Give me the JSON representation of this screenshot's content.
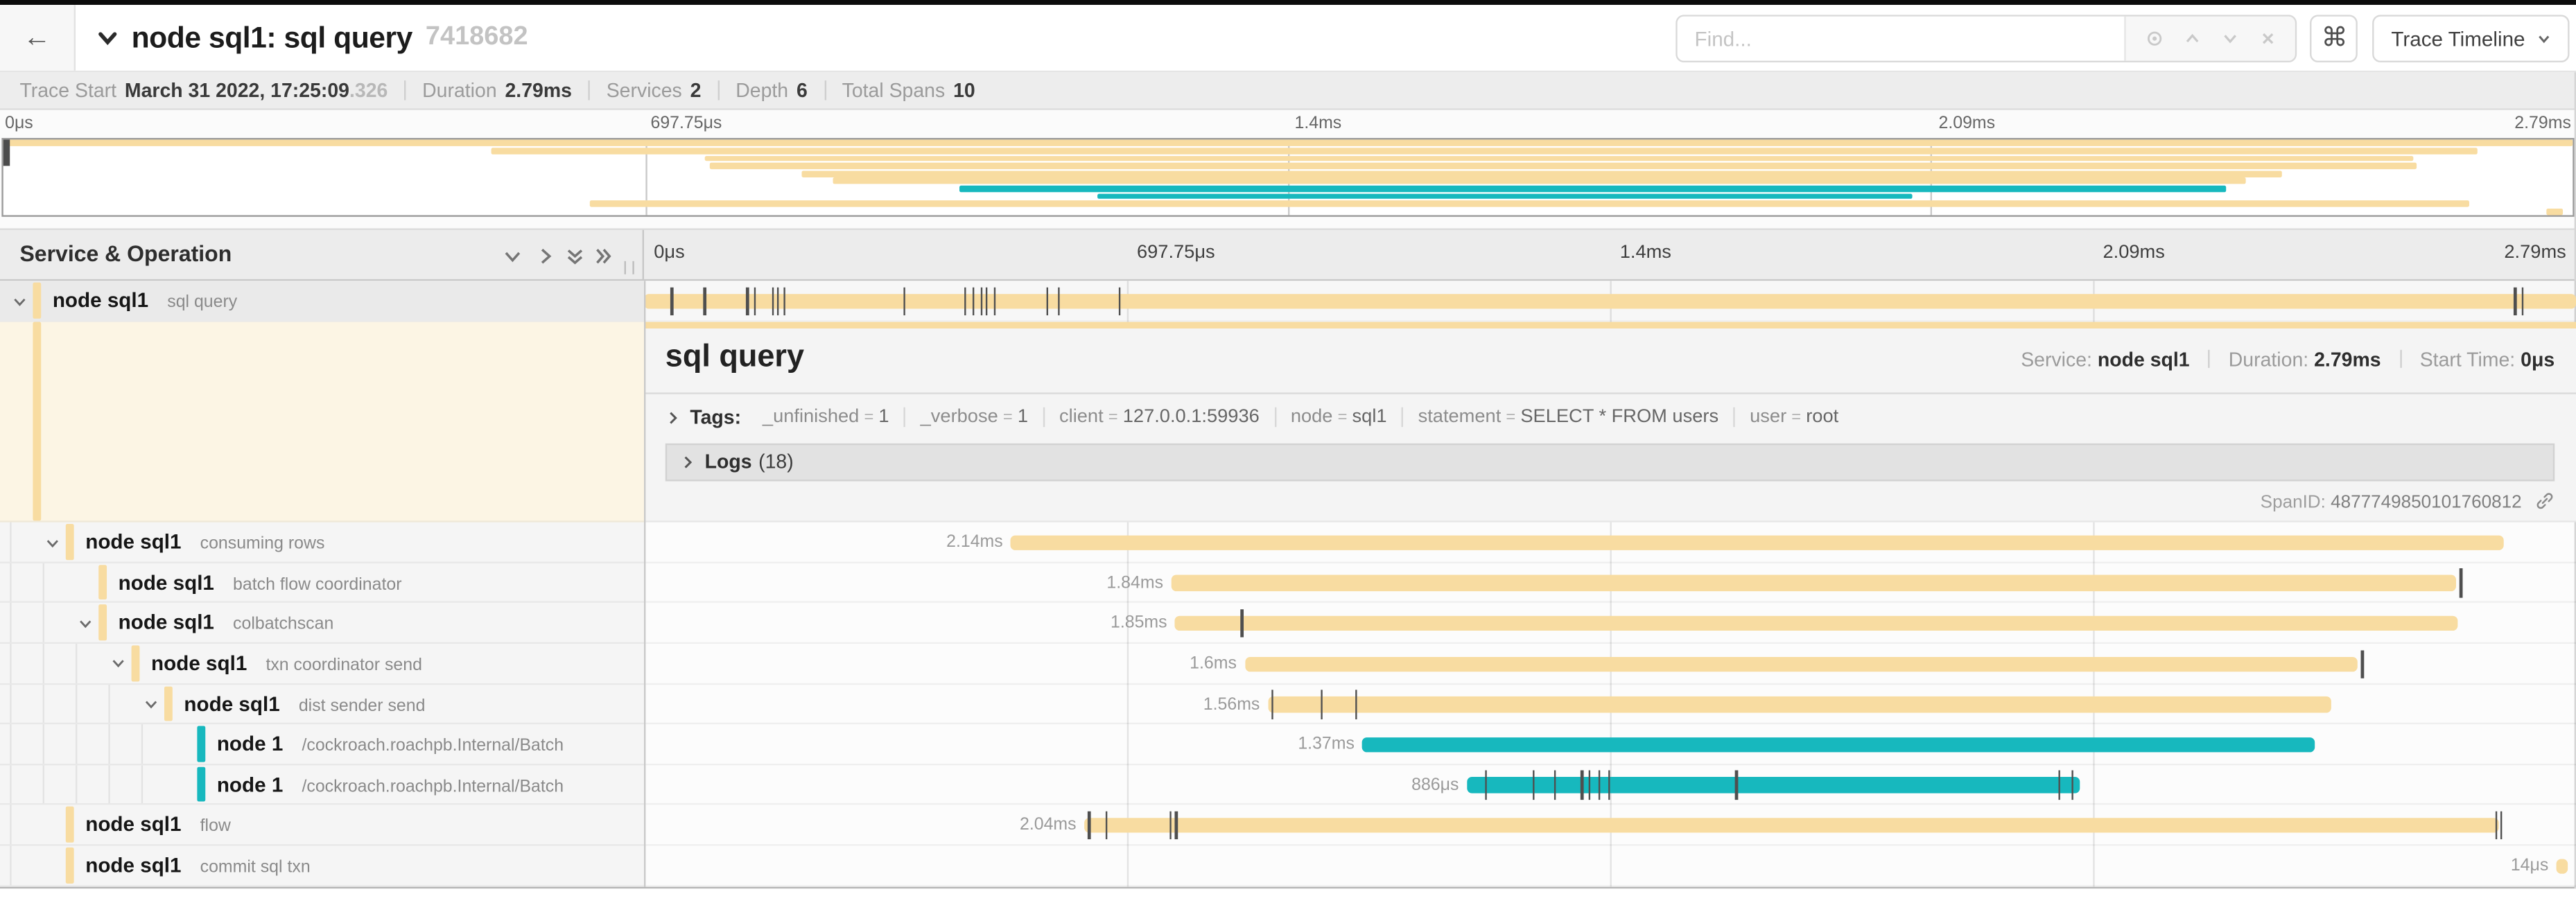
{
  "header": {
    "back_label": "←",
    "title": "node sql1: sql query",
    "trace_id": "7418682",
    "find_placeholder": "Find...",
    "shortcut_key": "⌘",
    "view_button_label": "Trace Timeline",
    "icons": [
      "locate-icon",
      "chevron-up-icon",
      "chevron-down-icon",
      "close-icon",
      "command-icon",
      "caret-down-icon"
    ]
  },
  "stats": {
    "items": [
      {
        "label": "Trace Start",
        "value": "March 31 2022, 17:25:09",
        "muted": ".326"
      },
      {
        "label": "Duration",
        "value": "2.79ms"
      },
      {
        "label": "Services",
        "value": "2"
      },
      {
        "label": "Depth",
        "value": "6"
      },
      {
        "label": "Total Spans",
        "value": "10"
      }
    ]
  },
  "timeline": {
    "column_title": "Service & Operation",
    "ticks": [
      "0μs",
      "697.75μs",
      "1.4ms",
      "2.09ms",
      "2.79ms"
    ]
  },
  "colors": {
    "tan": "#F8DCA1",
    "teal": "#17B8BE"
  },
  "spans": [
    {
      "service": "node sql1",
      "operation": "sql query",
      "color": "#F8DCA1",
      "depth": 0,
      "expandable": true,
      "selected": true,
      "detail_open": true,
      "start": 0,
      "width": 100,
      "duration_label": "",
      "ticks": [
        1.4,
        3.1,
        5.3,
        5.7,
        6.6,
        6.9,
        7.2,
        13.4,
        16.6,
        17.0,
        17.4,
        17.7,
        18.1,
        20.8,
        21.4,
        24.6,
        96.8,
        97.2
      ]
    },
    {
      "service": "node sql1",
      "operation": "consuming rows",
      "color": "#F8DCA1",
      "depth": 1,
      "expandable": true,
      "selected": false,
      "start": 19.0,
      "width": 77.3,
      "duration_label": "2.14ms",
      "ticks": []
    },
    {
      "service": "node sql1",
      "operation": "batch flow coordinator",
      "color": "#F8DCA1",
      "depth": 2,
      "expandable": false,
      "selected": false,
      "start": 27.3,
      "width": 66.5,
      "duration_label": "1.84ms",
      "ticks": [
        94.0
      ]
    },
    {
      "service": "node sql1",
      "operation": "colbatchscan",
      "color": "#F8DCA1",
      "depth": 2,
      "expandable": true,
      "selected": false,
      "start": 27.5,
      "width": 66.4,
      "duration_label": "1.85ms",
      "ticks": [
        30.9
      ]
    },
    {
      "service": "node sql1",
      "operation": "txn coordinator send",
      "color": "#F8DCA1",
      "depth": 3,
      "expandable": true,
      "selected": false,
      "start": 31.1,
      "width": 57.6,
      "duration_label": "1.6ms",
      "ticks": [
        88.9
      ]
    },
    {
      "service": "node sql1",
      "operation": "dist sender send",
      "color": "#F8DCA1",
      "depth": 4,
      "expandable": true,
      "selected": false,
      "start": 32.3,
      "width": 55.0,
      "duration_label": "1.56ms",
      "ticks": [
        32.5,
        35.0,
        36.8
      ]
    },
    {
      "service": "node 1",
      "operation": "/cockroach.roachpb.Internal/Batch",
      "color": "#17B8BE",
      "depth": 5,
      "expandable": false,
      "selected": false,
      "start": 37.2,
      "width": 49.3,
      "duration_label": "1.37ms",
      "ticks": []
    },
    {
      "service": "node 1",
      "operation": "/cockroach.roachpb.Internal/Batch",
      "color": "#17B8BE",
      "depth": 5,
      "expandable": false,
      "selected": false,
      "start": 42.6,
      "width": 31.7,
      "duration_label": "886μs",
      "ticks": [
        43.5,
        46.0,
        47.1,
        48.5,
        48.9,
        49.4,
        49.9,
        56.5,
        73.2,
        73.9
      ]
    },
    {
      "service": "node sql1",
      "operation": "flow",
      "color": "#F8DCA1",
      "depth": 1,
      "expandable": false,
      "selected": false,
      "start": 22.8,
      "width": 73.2,
      "duration_label": "2.04ms",
      "ticks": [
        23.0,
        23.9,
        27.2,
        27.5,
        95.8,
        96.1
      ]
    },
    {
      "service": "node sql1",
      "operation": "commit sql txn",
      "color": "#F8DCA1",
      "depth": 1,
      "expandable": false,
      "selected": false,
      "start": 99.0,
      "width": 0.6,
      "duration_label": "14μs",
      "ticks": []
    }
  ],
  "detail": {
    "title": "sql query",
    "service_label": "Service:",
    "service_value": "node sql1",
    "duration_label": "Duration:",
    "duration_value": "2.79ms",
    "start_label": "Start Time:",
    "start_value": "0μs",
    "tags_label": "Tags:",
    "tags": [
      {
        "key": "_unfinished",
        "value": "1"
      },
      {
        "key": "_verbose",
        "value": "1"
      },
      {
        "key": "client",
        "value": "127.0.0.1:59936"
      },
      {
        "key": "node",
        "value": "sql1"
      },
      {
        "key": "statement",
        "value": "SELECT * FROM users"
      },
      {
        "key": "user",
        "value": "root"
      }
    ],
    "logs_label": "Logs",
    "logs_count": "(18)",
    "span_id_label": "SpanID:",
    "span_id": "4877749850101760812"
  }
}
